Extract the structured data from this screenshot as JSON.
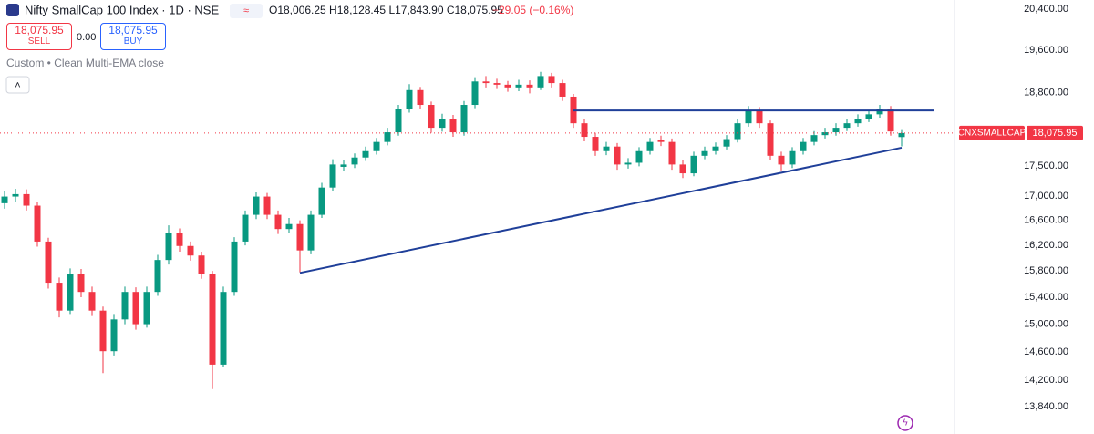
{
  "header": {
    "symbol": "Nifty SmallCap 100 Index · 1D · NSE",
    "ohlc": "O18,006.25 H18,128.45 L17,843.90 C18,075.95",
    "change": "−29.05 (−0.16%)",
    "sell_price": "18,075.95",
    "sell": "SELL",
    "spread": "0.00",
    "buy_price": "18,075.95",
    "buy": "BUY",
    "indicator": "Custom • Clean Multi-EMA close"
  },
  "chart_data": {
    "type": "candlestick",
    "log_scale": true,
    "up_color": "#089981",
    "down_color": "#f23645",
    "open": [
      16880,
      16990,
      17030,
      16840,
      16260,
      15620,
      15200,
      15760,
      15480,
      15200,
      14610,
      15070,
      15480,
      15000,
      15480,
      15970,
      16400,
      16190,
      16040,
      15760,
      14420,
      15480,
      16260,
      16690,
      16990,
      16690,
      16460,
      16540,
      16120,
      16690,
      17140,
      17490,
      17530,
      17650,
      17760,
      17920,
      18090,
      18500,
      18850,
      18580,
      18170,
      18330,
      18090,
      18580,
      19010,
      18980,
      18950,
      18900,
      18950,
      18900,
      19110,
      18980,
      18730,
      18250,
      18010,
      17760,
      17840,
      17530,
      17560,
      17760,
      17960,
      17920,
      17530,
      17380,
      17680,
      17760,
      17840,
      17970,
      18250,
      18470,
      18250,
      17680,
      17530,
      17760,
      17920,
      18040,
      18090,
      18170,
      18250,
      18330,
      18410,
      18500,
      18006.25
    ],
    "high": [
      17080,
      17120,
      17110,
      16900,
      16320,
      15700,
      15840,
      15830,
      15560,
      15260,
      15150,
      15560,
      15550,
      15560,
      16050,
      16520,
      16470,
      16260,
      16100,
      15800,
      15560,
      16330,
      16760,
      17060,
      17050,
      16760,
      16640,
      16600,
      16760,
      17220,
      17620,
      17610,
      17720,
      17840,
      17990,
      18170,
      18580,
      18960,
      18910,
      18640,
      18420,
      18400,
      18650,
      19090,
      19110,
      19060,
      19020,
      19040,
      19030,
      19190,
      19170,
      19040,
      18780,
      18320,
      18080,
      17920,
      17900,
      17640,
      17830,
      17990,
      18030,
      17980,
      17600,
      17750,
      17840,
      17910,
      18040,
      18330,
      18560,
      18540,
      18300,
      17750,
      17830,
      17990,
      18110,
      18170,
      18250,
      18330,
      18410,
      18490,
      18580,
      18560,
      18128.45
    ],
    "low": [
      16790,
      16900,
      16760,
      16180,
      15530,
      15100,
      15150,
      15400,
      15120,
      14300,
      14550,
      15000,
      14920,
      14950,
      15420,
      15900,
      16100,
      15960,
      15680,
      14080,
      14380,
      15420,
      16200,
      16620,
      16620,
      16380,
      16390,
      15780,
      16060,
      16640,
      17090,
      17420,
      17470,
      17590,
      17700,
      17860,
      18030,
      18440,
      18500,
      18080,
      18100,
      18010,
      18030,
      18520,
      18900,
      18870,
      18820,
      18830,
      18790,
      18850,
      18900,
      18650,
      18170,
      17930,
      17680,
      17690,
      17440,
      17460,
      17500,
      17700,
      17850,
      17440,
      17300,
      17330,
      17620,
      17700,
      17790,
      17910,
      18190,
      18170,
      17600,
      17430,
      17470,
      17700,
      17860,
      17980,
      18030,
      18110,
      18190,
      18270,
      18350,
      18030,
      17843.9
    ],
    "close": [
      16990,
      17030,
      16840,
      16260,
      15620,
      15200,
      15760,
      15480,
      15200,
      14610,
      15070,
      15480,
      15000,
      15480,
      15970,
      16400,
      16190,
      16040,
      15760,
      14420,
      15480,
      16260,
      16690,
      16990,
      16690,
      16460,
      16540,
      16120,
      16690,
      17140,
      17530,
      17530,
      17650,
      17760,
      17920,
      18090,
      18500,
      18850,
      18580,
      18170,
      18330,
      18090,
      18580,
      19010,
      18980,
      18950,
      18900,
      18950,
      18900,
      19110,
      18980,
      18730,
      18250,
      18010,
      17760,
      17840,
      17530,
      17560,
      17760,
      17920,
      17920,
      17530,
      17380,
      17680,
      17760,
      17840,
      17970,
      18250,
      18470,
      18250,
      17680,
      17530,
      17760,
      17920,
      18040,
      18090,
      18170,
      18250,
      18330,
      18410,
      18500,
      18105,
      18075.95
    ],
    "trendlines": [
      {
        "from": [
          52,
          18480
        ],
        "to": [
          85,
          18480
        ]
      },
      {
        "from": [
          27,
          15770
        ],
        "to": [
          82,
          17820
        ]
      }
    ],
    "ylim": [
      13476,
      20582
    ],
    "yticks": [
      {
        "value": 20400,
        "label": "20,400.00"
      },
      {
        "value": 19600,
        "label": "19,600.00"
      },
      {
        "value": 18800,
        "label": "18,800.00"
      },
      {
        "value": 17500,
        "label": "17,500.00"
      },
      {
        "value": 17000,
        "label": "17,000.00"
      },
      {
        "value": 16600,
        "label": "16,600.00"
      },
      {
        "value": 16200,
        "label": "16,200.00"
      },
      {
        "value": 15800,
        "label": "15,800.00"
      },
      {
        "value": 15400,
        "label": "15,400.00"
      },
      {
        "value": 15000,
        "label": "15,000.00"
      },
      {
        "value": 14600,
        "label": "14,600.00"
      },
      {
        "value": 14200,
        "label": "14,200.00"
      },
      {
        "value": 13840,
        "label": "13,840.00"
      }
    ],
    "last_price": {
      "name": "CNXSMALLCAP",
      "value": 18075.95,
      "label": "18,075.95"
    }
  }
}
